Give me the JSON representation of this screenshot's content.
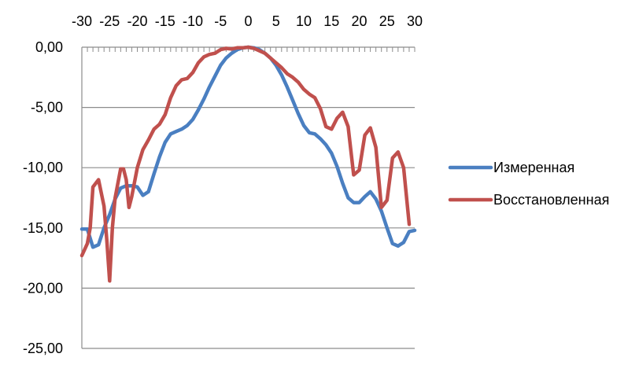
{
  "chart_data": {
    "type": "line",
    "title": "",
    "xlabel": "",
    "ylabel": "",
    "xlim": [
      -30,
      30
    ],
    "ylim": [
      -25,
      0
    ],
    "x_ticks": [
      "-30",
      "-25",
      "-20",
      "-15",
      "-10",
      "-5",
      "0",
      "5",
      "10",
      "15",
      "20",
      "25",
      "30"
    ],
    "y_ticks": [
      "0,00",
      "-5,00",
      "-10,00",
      "-15,00",
      "-20,00",
      "-25,00"
    ],
    "grid": "horizontal",
    "x_axis_position": "top",
    "legend_position": "right",
    "colors": {
      "measured": "#4a7fc1",
      "reconstructed": "#c0504d",
      "grid": "#8c8c8c",
      "axis": "#8c8c8c"
    },
    "series": [
      {
        "name": "Измеренная",
        "color": "#4a7fc1",
        "points": [
          [
            -30,
            -15.1
          ],
          [
            -29,
            -15.1
          ],
          [
            -28,
            -16.6
          ],
          [
            -27,
            -16.4
          ],
          [
            -26,
            -15.0
          ],
          [
            -25,
            -13.9
          ],
          [
            -24,
            -12.6
          ],
          [
            -23,
            -11.7
          ],
          [
            -22,
            -11.5
          ],
          [
            -21,
            -11.5
          ],
          [
            -20,
            -11.6
          ],
          [
            -19,
            -12.3
          ],
          [
            -18,
            -12.0
          ],
          [
            -17,
            -10.5
          ],
          [
            -16,
            -9.1
          ],
          [
            -15,
            -7.9
          ],
          [
            -14,
            -7.2
          ],
          [
            -13,
            -7.0
          ],
          [
            -12,
            -6.8
          ],
          [
            -11,
            -6.5
          ],
          [
            -10,
            -6.0
          ],
          [
            -9,
            -5.2
          ],
          [
            -8,
            -4.3
          ],
          [
            -7,
            -3.3
          ],
          [
            -6,
            -2.4
          ],
          [
            -5,
            -1.5
          ],
          [
            -4,
            -0.9
          ],
          [
            -3,
            -0.5
          ],
          [
            -2,
            -0.2
          ],
          [
            -1,
            -0.05
          ],
          [
            0,
            0.0
          ],
          [
            1,
            -0.05
          ],
          [
            2,
            -0.2
          ],
          [
            3,
            -0.5
          ],
          [
            4,
            -0.9
          ],
          [
            5,
            -1.5
          ],
          [
            6,
            -2.3
          ],
          [
            7,
            -3.3
          ],
          [
            8,
            -4.4
          ],
          [
            9,
            -5.5
          ],
          [
            10,
            -6.5
          ],
          [
            11,
            -7.1
          ],
          [
            12,
            -7.2
          ],
          [
            13,
            -7.6
          ],
          [
            14,
            -8.1
          ],
          [
            15,
            -8.8
          ],
          [
            16,
            -9.9
          ],
          [
            17,
            -11.3
          ],
          [
            18,
            -12.5
          ],
          [
            19,
            -12.9
          ],
          [
            20,
            -12.9
          ],
          [
            21,
            -12.4
          ],
          [
            22,
            -12.0
          ],
          [
            23,
            -12.6
          ],
          [
            24,
            -13.6
          ],
          [
            25,
            -15.0
          ],
          [
            26,
            -16.3
          ],
          [
            27,
            -16.5
          ],
          [
            28,
            -16.2
          ],
          [
            29,
            -15.3
          ],
          [
            30,
            -15.2
          ]
        ]
      },
      {
        "name": "Восстановленная",
        "color": "#c0504d",
        "points": [
          [
            -30,
            -17.3
          ],
          [
            -29,
            -16.3
          ],
          [
            -28.5,
            -15.0
          ],
          [
            -28,
            -11.6
          ],
          [
            -27,
            -11.0
          ],
          [
            -26,
            -13.2
          ],
          [
            -25.5,
            -16.0
          ],
          [
            -25,
            -19.4
          ],
          [
            -24.5,
            -15.0
          ],
          [
            -24,
            -12.5
          ],
          [
            -23,
            -10.1
          ],
          [
            -22.5,
            -10.1
          ],
          [
            -22,
            -11.0
          ],
          [
            -21.5,
            -13.3
          ],
          [
            -21,
            -12.4
          ],
          [
            -20,
            -10.0
          ],
          [
            -19,
            -8.5
          ],
          [
            -18,
            -7.7
          ],
          [
            -17,
            -6.8
          ],
          [
            -16,
            -6.4
          ],
          [
            -15,
            -5.6
          ],
          [
            -14,
            -4.2
          ],
          [
            -13,
            -3.2
          ],
          [
            -12,
            -2.7
          ],
          [
            -11,
            -2.6
          ],
          [
            -10,
            -2.1
          ],
          [
            -9,
            -1.3
          ],
          [
            -8,
            -0.8
          ],
          [
            -7,
            -0.6
          ],
          [
            -6,
            -0.5
          ],
          [
            -5,
            -0.2
          ],
          [
            -4,
            -0.1
          ],
          [
            -3,
            -0.15
          ],
          [
            -2,
            -0.05
          ],
          [
            -1,
            -0.05
          ],
          [
            0,
            0.0
          ],
          [
            1,
            -0.1
          ],
          [
            2,
            -0.3
          ],
          [
            3,
            -0.5
          ],
          [
            4,
            -0.9
          ],
          [
            5,
            -1.3
          ],
          [
            6,
            -1.7
          ],
          [
            7,
            -2.2
          ],
          [
            8,
            -2.5
          ],
          [
            9,
            -2.9
          ],
          [
            10,
            -3.5
          ],
          [
            11,
            -3.9
          ],
          [
            12,
            -4.2
          ],
          [
            13,
            -5.1
          ],
          [
            14,
            -6.6
          ],
          [
            15,
            -6.8
          ],
          [
            16,
            -5.9
          ],
          [
            17,
            -5.4
          ],
          [
            18,
            -6.6
          ],
          [
            19,
            -10.6
          ],
          [
            20,
            -10.2
          ],
          [
            21,
            -7.3
          ],
          [
            22,
            -6.7
          ],
          [
            23,
            -8.3
          ],
          [
            24,
            -13.3
          ],
          [
            25,
            -12.7
          ],
          [
            26,
            -9.2
          ],
          [
            27,
            -8.7
          ],
          [
            28,
            -10.0
          ],
          [
            29,
            -14.7
          ]
        ]
      }
    ]
  }
}
